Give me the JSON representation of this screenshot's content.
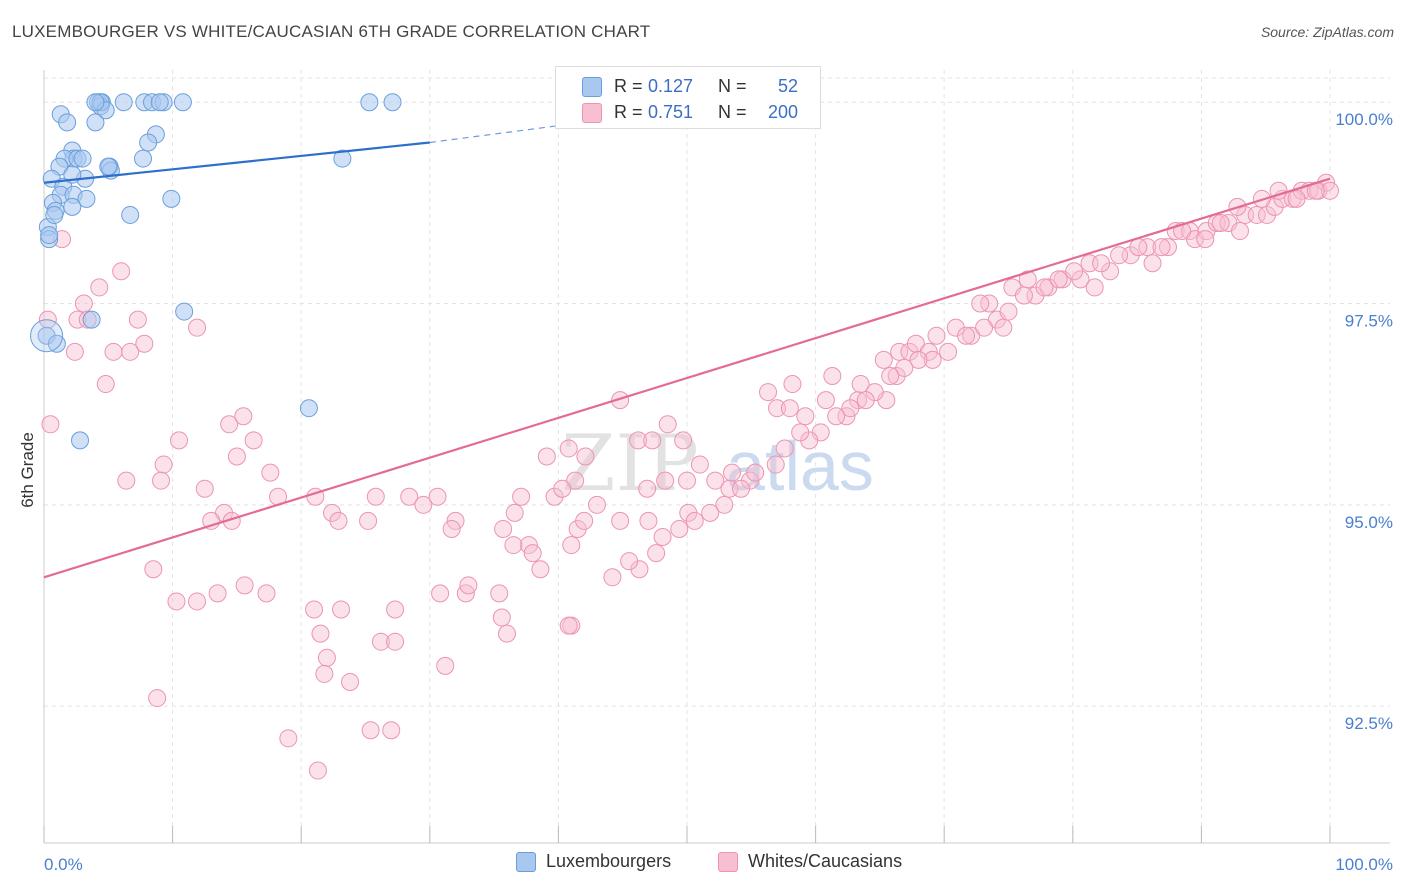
{
  "title": "LUXEMBOURGER VS WHITE/CAUCASIAN 6TH GRADE CORRELATION CHART",
  "source": "Source: ZipAtlas.com",
  "watermark": {
    "zip": "ZIP",
    "atlas": "atlas"
  },
  "stats": [
    {
      "r_label": "R =",
      "r_value": "0.127",
      "n_label": "N =",
      "n_value": "52"
    },
    {
      "r_label": "R =",
      "r_value": "0.751",
      "n_label": "N =",
      "n_value": "200"
    }
  ],
  "legend": {
    "items": [
      "Luxembourgers",
      "Whites/Caucasians"
    ]
  },
  "colors": {
    "blue_fill": "#a9c8f0",
    "blue_stroke": "#6a9fdb",
    "blue_line": "#2f6fcc",
    "pink_fill": "#f7bfd1",
    "pink_stroke": "#ec94b2",
    "pink_line": "#e46b96",
    "tick_label": "#4a7fcf",
    "grid": "#e3e3e3"
  },
  "chart_data": {
    "type": "scatter",
    "title": "LUXEMBOURGER VS WHITE/CAUCASIAN 6TH GRADE CORRELATION CHART",
    "xlabel": "",
    "ylabel": "6th Grade",
    "xlim": [
      0,
      100
    ],
    "ylim": [
      90.8,
      100.4
    ],
    "x_tick_labels": [
      {
        "value": 0,
        "label": "0.0%"
      },
      {
        "value": 100,
        "label": "100.0%"
      }
    ],
    "y_tick_labels": [
      {
        "value": 100.0,
        "label": "100.0%"
      },
      {
        "value": 97.5,
        "label": "97.5%"
      },
      {
        "value": 95.0,
        "label": "95.0%"
      },
      {
        "value": 92.5,
        "label": "92.5%"
      }
    ],
    "grid": true,
    "legend_position": "bottom-center",
    "series": [
      {
        "name": "Luxembourgers",
        "r": 0.127,
        "n": 52,
        "trend": {
          "x0": 0,
          "y0": 99.0,
          "x1": 30,
          "y1": 99.5,
          "dashed_to_x": 42,
          "dashed_to_y": 99.75
        },
        "points": [
          [
            4.2,
            100.0
          ],
          [
            4.5,
            100.0
          ],
          [
            4.4,
            99.95
          ],
          [
            6.2,
            100.0
          ],
          [
            7.8,
            100.0
          ],
          [
            8.4,
            100.0
          ],
          [
            9.3,
            100.0
          ],
          [
            10.8,
            100.0
          ],
          [
            25.3,
            100.0
          ],
          [
            27.1,
            100.0
          ],
          [
            4.4,
            100.0
          ],
          [
            4.8,
            99.9
          ],
          [
            1.3,
            99.85
          ],
          [
            1.8,
            99.75
          ],
          [
            4.0,
            99.75
          ],
          [
            8.7,
            99.6
          ],
          [
            2.2,
            99.4
          ],
          [
            8.1,
            99.5
          ],
          [
            2.3,
            99.3
          ],
          [
            1.6,
            99.3
          ],
          [
            2.6,
            99.3
          ],
          [
            7.7,
            99.3
          ],
          [
            1.2,
            99.2
          ],
          [
            5.1,
            99.2
          ],
          [
            5.2,
            99.15
          ],
          [
            0.6,
            99.05
          ],
          [
            1.5,
            98.95
          ],
          [
            3.2,
            99.05
          ],
          [
            2.2,
            99.1
          ],
          [
            1.3,
            98.85
          ],
          [
            2.3,
            98.85
          ],
          [
            3.3,
            98.8
          ],
          [
            0.7,
            98.75
          ],
          [
            0.9,
            98.65
          ],
          [
            2.2,
            98.7
          ],
          [
            6.7,
            98.6
          ],
          [
            9.9,
            98.8
          ],
          [
            0.3,
            98.45
          ],
          [
            0.4,
            98.3
          ],
          [
            23.2,
            99.3
          ],
          [
            10.9,
            97.4
          ],
          [
            0.2,
            97.1
          ],
          [
            1.0,
            97.0
          ],
          [
            3.7,
            97.3
          ],
          [
            20.6,
            96.2
          ],
          [
            2.8,
            95.8
          ],
          [
            0.8,
            98.6
          ],
          [
            3.0,
            99.3
          ],
          [
            5.0,
            99.2
          ],
          [
            4.0,
            100.0
          ],
          [
            9.0,
            100.0
          ],
          [
            0.4,
            98.35
          ]
        ]
      },
      {
        "name": "Whites/Caucasians",
        "r": 0.751,
        "n": 200,
        "trend": {
          "x0": 0,
          "y0": 94.1,
          "x1": 100,
          "y1": 99.05
        },
        "points": [
          [
            1.4,
            98.3
          ],
          [
            0.3,
            97.3
          ],
          [
            3.1,
            97.5
          ],
          [
            4.3,
            97.7
          ],
          [
            6.0,
            97.9
          ],
          [
            2.6,
            97.3
          ],
          [
            3.4,
            97.3
          ],
          [
            7.3,
            97.3
          ],
          [
            11.9,
            97.2
          ],
          [
            2.4,
            96.9
          ],
          [
            5.4,
            96.9
          ],
          [
            6.7,
            96.9
          ],
          [
            7.8,
            97.0
          ],
          [
            4.8,
            96.5
          ],
          [
            0.5,
            96.0
          ],
          [
            14.4,
            96.0
          ],
          [
            15.5,
            96.1
          ],
          [
            10.5,
            95.8
          ],
          [
            16.3,
            95.8
          ],
          [
            9.3,
            95.5
          ],
          [
            17.6,
            95.4
          ],
          [
            6.4,
            95.3
          ],
          [
            9.1,
            95.3
          ],
          [
            12.5,
            95.2
          ],
          [
            15.0,
            95.6
          ],
          [
            18.2,
            95.1
          ],
          [
            21.1,
            95.1
          ],
          [
            25.8,
            95.1
          ],
          [
            28.4,
            95.1
          ],
          [
            29.5,
            95.0
          ],
          [
            30.6,
            95.1
          ],
          [
            14.0,
            94.9
          ],
          [
            13.0,
            94.8
          ],
          [
            14.6,
            94.8
          ],
          [
            22.4,
            94.9
          ],
          [
            22.9,
            94.8
          ],
          [
            25.2,
            94.8
          ],
          [
            32.0,
            94.8
          ],
          [
            31.7,
            94.7
          ],
          [
            35.7,
            94.7
          ],
          [
            37.7,
            94.5
          ],
          [
            36.5,
            94.5
          ],
          [
            38.0,
            94.4
          ],
          [
            41.5,
            94.7
          ],
          [
            41.0,
            94.5
          ],
          [
            42.0,
            94.8
          ],
          [
            38.6,
            94.2
          ],
          [
            8.5,
            94.2
          ],
          [
            11.9,
            93.8
          ],
          [
            10.3,
            93.8
          ],
          [
            13.5,
            93.9
          ],
          [
            15.6,
            94.0
          ],
          [
            17.3,
            93.9
          ],
          [
            21.0,
            93.7
          ],
          [
            23.1,
            93.7
          ],
          [
            27.3,
            93.7
          ],
          [
            30.8,
            93.9
          ],
          [
            32.8,
            93.9
          ],
          [
            33.0,
            94.0
          ],
          [
            35.4,
            93.9
          ],
          [
            35.6,
            93.6
          ],
          [
            36.0,
            93.4
          ],
          [
            21.5,
            93.4
          ],
          [
            26.2,
            93.3
          ],
          [
            27.3,
            93.3
          ],
          [
            41.0,
            93.5
          ],
          [
            40.8,
            93.5
          ],
          [
            22.0,
            93.1
          ],
          [
            21.8,
            92.9
          ],
          [
            23.8,
            92.8
          ],
          [
            31.2,
            93.0
          ],
          [
            8.8,
            92.6
          ],
          [
            25.4,
            92.2
          ],
          [
            27.0,
            92.2
          ],
          [
            19.0,
            92.1
          ],
          [
            21.3,
            91.7
          ],
          [
            44.8,
            96.3
          ],
          [
            48.5,
            96.0
          ],
          [
            46.2,
            95.8
          ],
          [
            47.3,
            95.8
          ],
          [
            40.8,
            95.7
          ],
          [
            42.1,
            95.6
          ],
          [
            39.1,
            95.6
          ],
          [
            49.7,
            95.8
          ],
          [
            51.0,
            95.5
          ],
          [
            53.5,
            95.4
          ],
          [
            54.9,
            95.3
          ],
          [
            46.9,
            95.2
          ],
          [
            50.0,
            95.3
          ],
          [
            52.2,
            95.3
          ],
          [
            41.3,
            95.3
          ],
          [
            43.0,
            95.0
          ],
          [
            37.1,
            95.1
          ],
          [
            39.7,
            95.1
          ],
          [
            36.6,
            94.9
          ],
          [
            47.0,
            94.8
          ],
          [
            50.1,
            94.9
          ],
          [
            44.8,
            94.8
          ],
          [
            40.3,
            95.2
          ],
          [
            46.3,
            94.2
          ],
          [
            48.3,
            95.3
          ],
          [
            53.3,
            95.2
          ],
          [
            57.0,
            96.2
          ],
          [
            59.2,
            96.1
          ],
          [
            60.8,
            96.3
          ],
          [
            62.4,
            96.1
          ],
          [
            63.3,
            96.3
          ],
          [
            65.5,
            96.3
          ],
          [
            58.0,
            96.2
          ],
          [
            56.3,
            96.4
          ],
          [
            58.2,
            96.5
          ],
          [
            63.5,
            96.5
          ],
          [
            66.3,
            96.6
          ],
          [
            61.3,
            96.6
          ],
          [
            65.3,
            96.8
          ],
          [
            66.5,
            96.9
          ],
          [
            67.3,
            96.9
          ],
          [
            67.8,
            97.0
          ],
          [
            68.8,
            96.9
          ],
          [
            69.4,
            97.1
          ],
          [
            70.9,
            97.2
          ],
          [
            72.1,
            97.1
          ],
          [
            74.1,
            97.3
          ],
          [
            74.6,
            97.2
          ],
          [
            73.5,
            97.5
          ],
          [
            72.8,
            97.5
          ],
          [
            75.3,
            97.7
          ],
          [
            76.5,
            97.8
          ],
          [
            77.1,
            97.6
          ],
          [
            78.1,
            97.7
          ],
          [
            79.2,
            97.8
          ],
          [
            80.6,
            97.8
          ],
          [
            81.3,
            98.0
          ],
          [
            81.7,
            97.7
          ],
          [
            82.9,
            97.9
          ],
          [
            84.5,
            98.1
          ],
          [
            85.8,
            98.2
          ],
          [
            86.2,
            98.0
          ],
          [
            87.4,
            98.2
          ],
          [
            88.0,
            98.4
          ],
          [
            89.1,
            98.4
          ],
          [
            89.5,
            98.3
          ],
          [
            90.4,
            98.4
          ],
          [
            91.2,
            98.5
          ],
          [
            92.1,
            98.5
          ],
          [
            93.0,
            98.4
          ],
          [
            93.4,
            98.6
          ],
          [
            94.3,
            98.6
          ],
          [
            95.1,
            98.6
          ],
          [
            95.7,
            98.7
          ],
          [
            96.3,
            98.8
          ],
          [
            97.1,
            98.8
          ],
          [
            97.8,
            98.9
          ],
          [
            98.4,
            98.9
          ],
          [
            99.1,
            98.9
          ],
          [
            99.7,
            99.0
          ],
          [
            100.0,
            98.9
          ],
          [
            91.5,
            98.5
          ],
          [
            92.8,
            98.7
          ],
          [
            94.7,
            98.8
          ],
          [
            96.0,
            98.9
          ],
          [
            97.4,
            98.8
          ],
          [
            98.9,
            98.9
          ],
          [
            90.3,
            98.3
          ],
          [
            88.5,
            98.4
          ],
          [
            86.9,
            98.2
          ],
          [
            85.1,
            98.2
          ],
          [
            83.6,
            98.1
          ],
          [
            82.2,
            98.0
          ],
          [
            80.1,
            97.9
          ],
          [
            78.9,
            97.8
          ],
          [
            77.8,
            97.7
          ],
          [
            76.2,
            97.6
          ],
          [
            75.0,
            97.4
          ],
          [
            73.1,
            97.2
          ],
          [
            71.7,
            97.1
          ],
          [
            70.3,
            96.9
          ],
          [
            69.1,
            96.8
          ],
          [
            68.0,
            96.8
          ],
          [
            66.9,
            96.7
          ],
          [
            65.8,
            96.6
          ],
          [
            64.6,
            96.4
          ],
          [
            63.9,
            96.3
          ],
          [
            62.7,
            96.2
          ],
          [
            61.6,
            96.1
          ],
          [
            60.4,
            95.9
          ],
          [
            59.5,
            95.8
          ],
          [
            58.8,
            95.9
          ],
          [
            57.6,
            95.7
          ],
          [
            56.9,
            95.5
          ],
          [
            55.3,
            95.4
          ],
          [
            54.2,
            95.2
          ],
          [
            52.9,
            95.0
          ],
          [
            51.8,
            94.9
          ],
          [
            50.6,
            94.8
          ],
          [
            49.4,
            94.7
          ],
          [
            48.1,
            94.6
          ],
          [
            47.6,
            94.4
          ],
          [
            45.5,
            94.3
          ],
          [
            44.2,
            94.1
          ]
        ]
      }
    ]
  }
}
